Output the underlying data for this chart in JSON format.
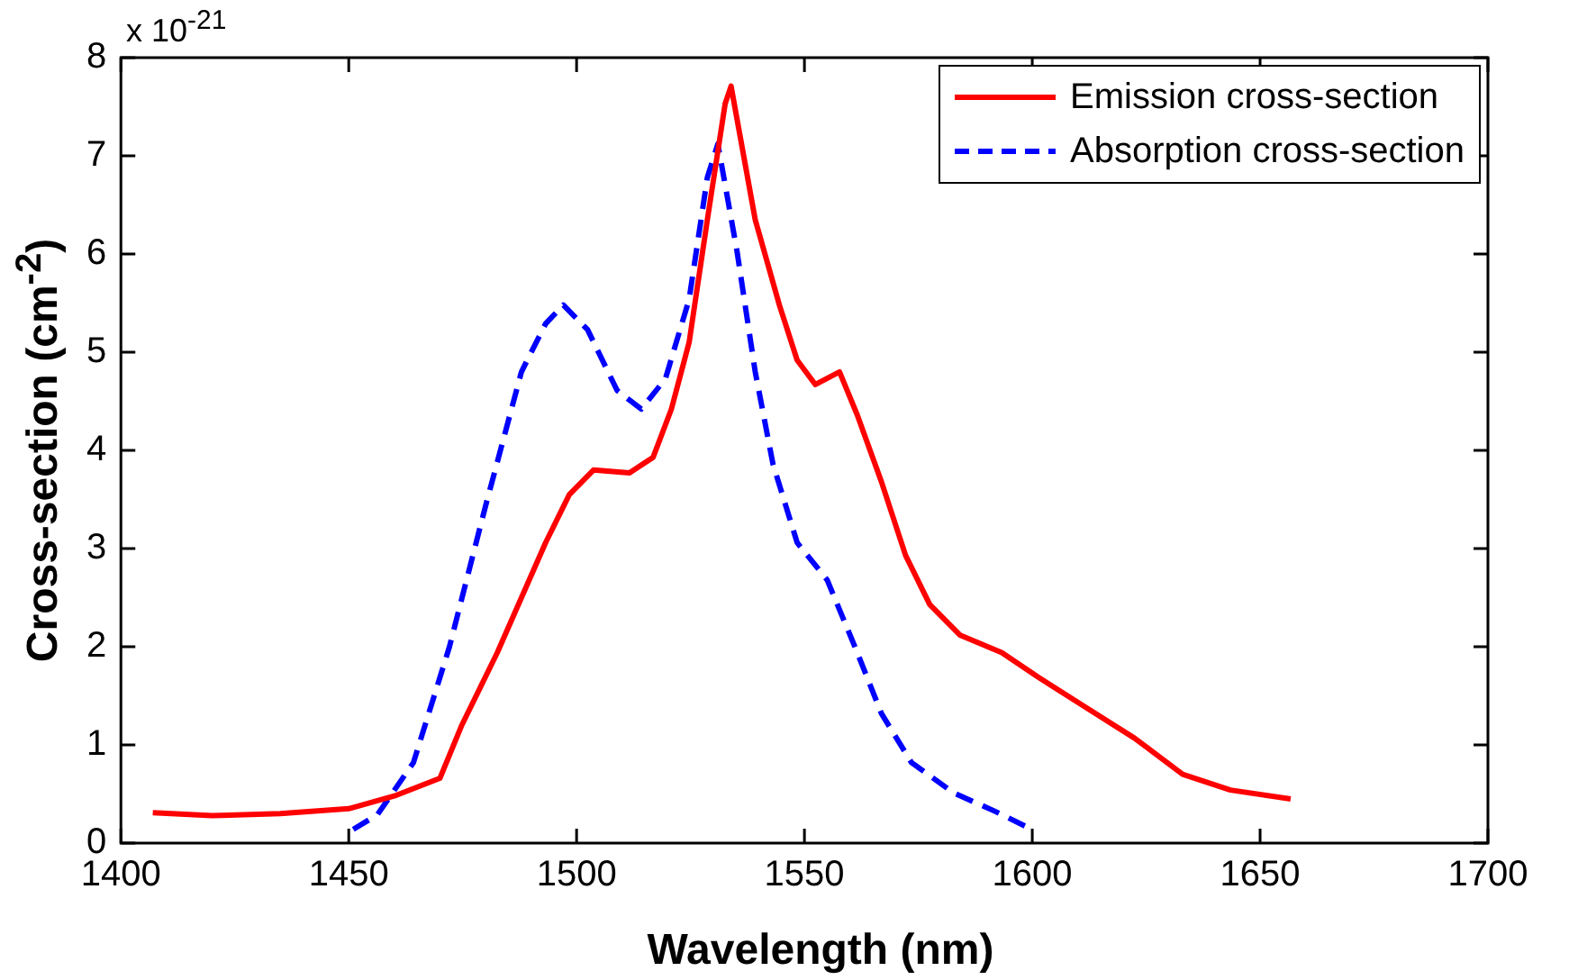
{
  "chart_data": {
    "type": "line",
    "xlabel": "Wavelength (nm)",
    "ylabel": "Cross-section (cm$^{-2}$)",
    "annotations": [
      "x 10$^{-21}$"
    ],
    "xlim": [
      1400,
      1700
    ],
    "xticks": [
      1400,
      1450,
      1500,
      1550,
      1600,
      1650,
      1700
    ],
    "ylim": [
      0,
      8
    ],
    "yticks": [
      0,
      1,
      2,
      3,
      4,
      5,
      6,
      7,
      8
    ],
    "grid": false,
    "legend": "top right",
    "marker": "none",
    "series": [
      {
        "name": "Emission cross-section",
        "color": "#ff0000",
        "line_style": "solid",
        "x": [
          1407,
          1420,
          1435,
          1450,
          1460,
          1470,
          1474.7,
          1482.6,
          1487.9,
          1493.2,
          1498.4,
          1503.7,
          1511.6,
          1516.8,
          1520.8,
          1524.7,
          1528.7,
          1532.6,
          1533.9,
          1539.2,
          1544.5,
          1548.4,
          1552.4,
          1557.7,
          1561.6,
          1566.9,
          1572.2,
          1577.5,
          1584.1,
          1593.3,
          1601.3,
          1611.8,
          1622.4,
          1633,
          1643.5,
          1656.7
        ],
        "values": [
          0.31,
          0.28,
          0.3,
          0.35,
          0.48,
          0.66,
          1.19,
          1.94,
          2.5,
          3.06,
          3.55,
          3.8,
          3.77,
          3.93,
          4.42,
          5.1,
          6.35,
          7.53,
          7.71,
          6.35,
          5.48,
          4.92,
          4.67,
          4.8,
          4.36,
          3.68,
          2.93,
          2.43,
          2.12,
          1.94,
          1.69,
          1.38,
          1.07,
          0.7,
          0.54,
          0.45
        ]
      },
      {
        "name": "Absorption cross-section",
        "color": "#0000ff",
        "line_style": "dashed",
        "x": [
          1451,
          1456.3,
          1464.2,
          1472.1,
          1480,
          1487.9,
          1493.2,
          1497.1,
          1502.4,
          1508.9,
          1514.2,
          1519.5,
          1524.7,
          1528.7,
          1531,
          1535.2,
          1539.2,
          1543.1,
          1548.4,
          1555,
          1561.6,
          1566.9,
          1573.5,
          1582.8,
          1592,
          1599.9
        ],
        "values": [
          0.14,
          0.29,
          0.82,
          2.0,
          3.43,
          4.8,
          5.29,
          5.48,
          5.23,
          4.61,
          4.42,
          4.73,
          5.54,
          6.78,
          7.12,
          6.03,
          4.8,
          3.86,
          3.06,
          2.68,
          1.94,
          1.32,
          0.82,
          0.51,
          0.32,
          0.14
        ]
      }
    ]
  }
}
